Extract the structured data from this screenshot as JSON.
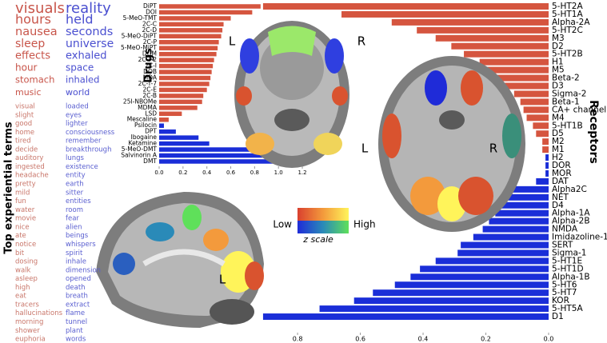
{
  "terms": {
    "title": "Top experiential terms",
    "red": [
      "visuals",
      "hours",
      "nausea",
      "sleep",
      "effects",
      "hour",
      "stomach",
      "music",
      "visual",
      "slight",
      "good",
      "home",
      "tired",
      "decide",
      "auditory",
      "ingested",
      "headache",
      "pretty",
      "mild",
      "fun",
      "water",
      "movie",
      "nice",
      "ate",
      "notice",
      "bit",
      "dosing",
      "walk",
      "asleep",
      "high",
      "eat",
      "tracers",
      "hallucinations",
      "morning",
      "shower",
      "euphoria"
    ],
    "blue": [
      "reality",
      "held",
      "seconds",
      "universe",
      "exhaled",
      "space",
      "inhaled",
      "world",
      "loaded",
      "eyes",
      "lighter",
      "consciousness",
      "remember",
      "breakthrough",
      "lungs",
      "existence",
      "entity",
      "earth",
      "sitter",
      "entities",
      "room",
      "fear",
      "alien",
      "beings",
      "whispers",
      "spirit",
      "inhale",
      "dimension",
      "opened",
      "death",
      "breath",
      "extract",
      "flame",
      "tunnel",
      "plant",
      "words"
    ]
  },
  "chart_data": [
    {
      "type": "barh",
      "title": "Drugs",
      "categories": [
        "DiPT",
        "DOI",
        "5-MeO-TMT",
        "2C-C",
        "2C-D",
        "5-MeO-DiPT",
        "2C-P",
        "5-MeO-MiPT",
        "DOM",
        "2C-T-2",
        "2C-I",
        "DOB",
        "MDA",
        "2C-T-7",
        "2C-E",
        "2C-B",
        "25I-NBOMe",
        "MDMA",
        "LSD",
        "Mescaline",
        "Psilocin",
        "DPT",
        "Ibogaine",
        "Ketamine",
        "5-MeO-DMT",
        "Salvinorin A",
        "DMT"
      ],
      "values": [
        0.85,
        0.78,
        0.6,
        0.54,
        0.53,
        0.52,
        0.5,
        0.49,
        0.48,
        0.46,
        0.45,
        0.44,
        0.43,
        0.42,
        0.4,
        0.37,
        0.36,
        0.32,
        0.19,
        0.08,
        0.04,
        0.14,
        0.33,
        0.42,
        0.89,
        1.13,
        1.21
      ],
      "colors": [
        "#d5553f",
        "#d5553f",
        "#d5553f",
        "#d5553f",
        "#d5553f",
        "#d5553f",
        "#d5553f",
        "#d5553f",
        "#d5553f",
        "#d5553f",
        "#d5553f",
        "#d5553f",
        "#d5553f",
        "#d5553f",
        "#d5553f",
        "#d5553f",
        "#d5553f",
        "#d5553f",
        "#d5553f",
        "#d5553f",
        "#1a2ed8",
        "#1a2ed8",
        "#1a2ed8",
        "#1a2ed8",
        "#1a2ed8",
        "#1a2ed8",
        "#1a2ed8"
      ],
      "xlim": [
        0,
        1.25
      ],
      "xticks": [
        {
          "value": 0,
          "label": "0.0"
        },
        {
          "value": 0.2,
          "label": "0.2"
        },
        {
          "value": 0.4,
          "label": "0.4"
        },
        {
          "value": 0.6,
          "label": "0.6"
        },
        {
          "value": 0.8,
          "label": "0.8"
        },
        {
          "value": 1,
          "label": "1.0"
        },
        {
          "value": 1.2,
          "label": "1.2"
        }
      ],
      "reversed": false
    },
    {
      "type": "barh",
      "title": "Receptors",
      "categories": [
        "5-HT2A",
        "5-HT1A",
        "Alpha-2A",
        "5-HT2C",
        "M3",
        "D2",
        "5-HT2B",
        "H1",
        "M5",
        "Beta-2",
        "D3",
        "Sigma-2",
        "Beta-1",
        "CA+ channel",
        "M4",
        "5-HT1B",
        "D5",
        "M2",
        "M1",
        "H2",
        "DOR",
        "MOR",
        "DAT",
        "Alpha2C",
        "NET",
        "D4",
        "Alpha-1A",
        "Alpha-2B",
        "NMDA",
        "Imidazoline-1",
        "SERT",
        "Sigma-1",
        "5-HT1E",
        "5-HT1D",
        "Alpha-1B",
        "5-HT6",
        "5-HT7",
        "KOR",
        "5-HT5A",
        "D1"
      ],
      "values": [
        0.91,
        0.66,
        0.5,
        0.42,
        0.36,
        0.31,
        0.27,
        0.22,
        0.21,
        0.18,
        0.14,
        0.11,
        0.09,
        0.08,
        0.07,
        0.05,
        0.04,
        0.02,
        0.02,
        0.01,
        0.01,
        0.01,
        0.04,
        0.13,
        0.15,
        0.16,
        0.17,
        0.19,
        0.21,
        0.24,
        0.28,
        0.29,
        0.36,
        0.41,
        0.44,
        0.49,
        0.56,
        0.62,
        0.73,
        0.91
      ],
      "colors": [
        "#d5553f",
        "#d5553f",
        "#d5553f",
        "#d5553f",
        "#d5553f",
        "#d5553f",
        "#d5553f",
        "#d5553f",
        "#d5553f",
        "#d5553f",
        "#d5553f",
        "#d5553f",
        "#d5553f",
        "#d5553f",
        "#d5553f",
        "#d5553f",
        "#d5553f",
        "#d5553f",
        "#d5553f",
        "#1a2ed8",
        "#1a2ed8",
        "#1a2ed8",
        "#1a2ed8",
        "#1a2ed8",
        "#1a2ed8",
        "#1a2ed8",
        "#1a2ed8",
        "#1a2ed8",
        "#1a2ed8",
        "#1a2ed8",
        "#1a2ed8",
        "#1a2ed8",
        "#1a2ed8",
        "#1a2ed8",
        "#1a2ed8",
        "#1a2ed8",
        "#1a2ed8",
        "#1a2ed8",
        "#1a2ed8",
        "#1a2ed8"
      ],
      "xlim": [
        0,
        0.92
      ],
      "xticks": [
        {
          "value": 0.8,
          "label": "0.8"
        },
        {
          "value": 0.6,
          "label": "0.6"
        },
        {
          "value": 0.4,
          "label": "0.4"
        },
        {
          "value": 0.2,
          "label": "0.2"
        },
        {
          "value": 0,
          "label": "0.0"
        }
      ],
      "reversed": true
    }
  ],
  "brain_labels": [
    "L",
    "R",
    "L",
    "R",
    "L"
  ],
  "colorbar": {
    "low": "Low",
    "high": "High",
    "label": "z scale"
  }
}
